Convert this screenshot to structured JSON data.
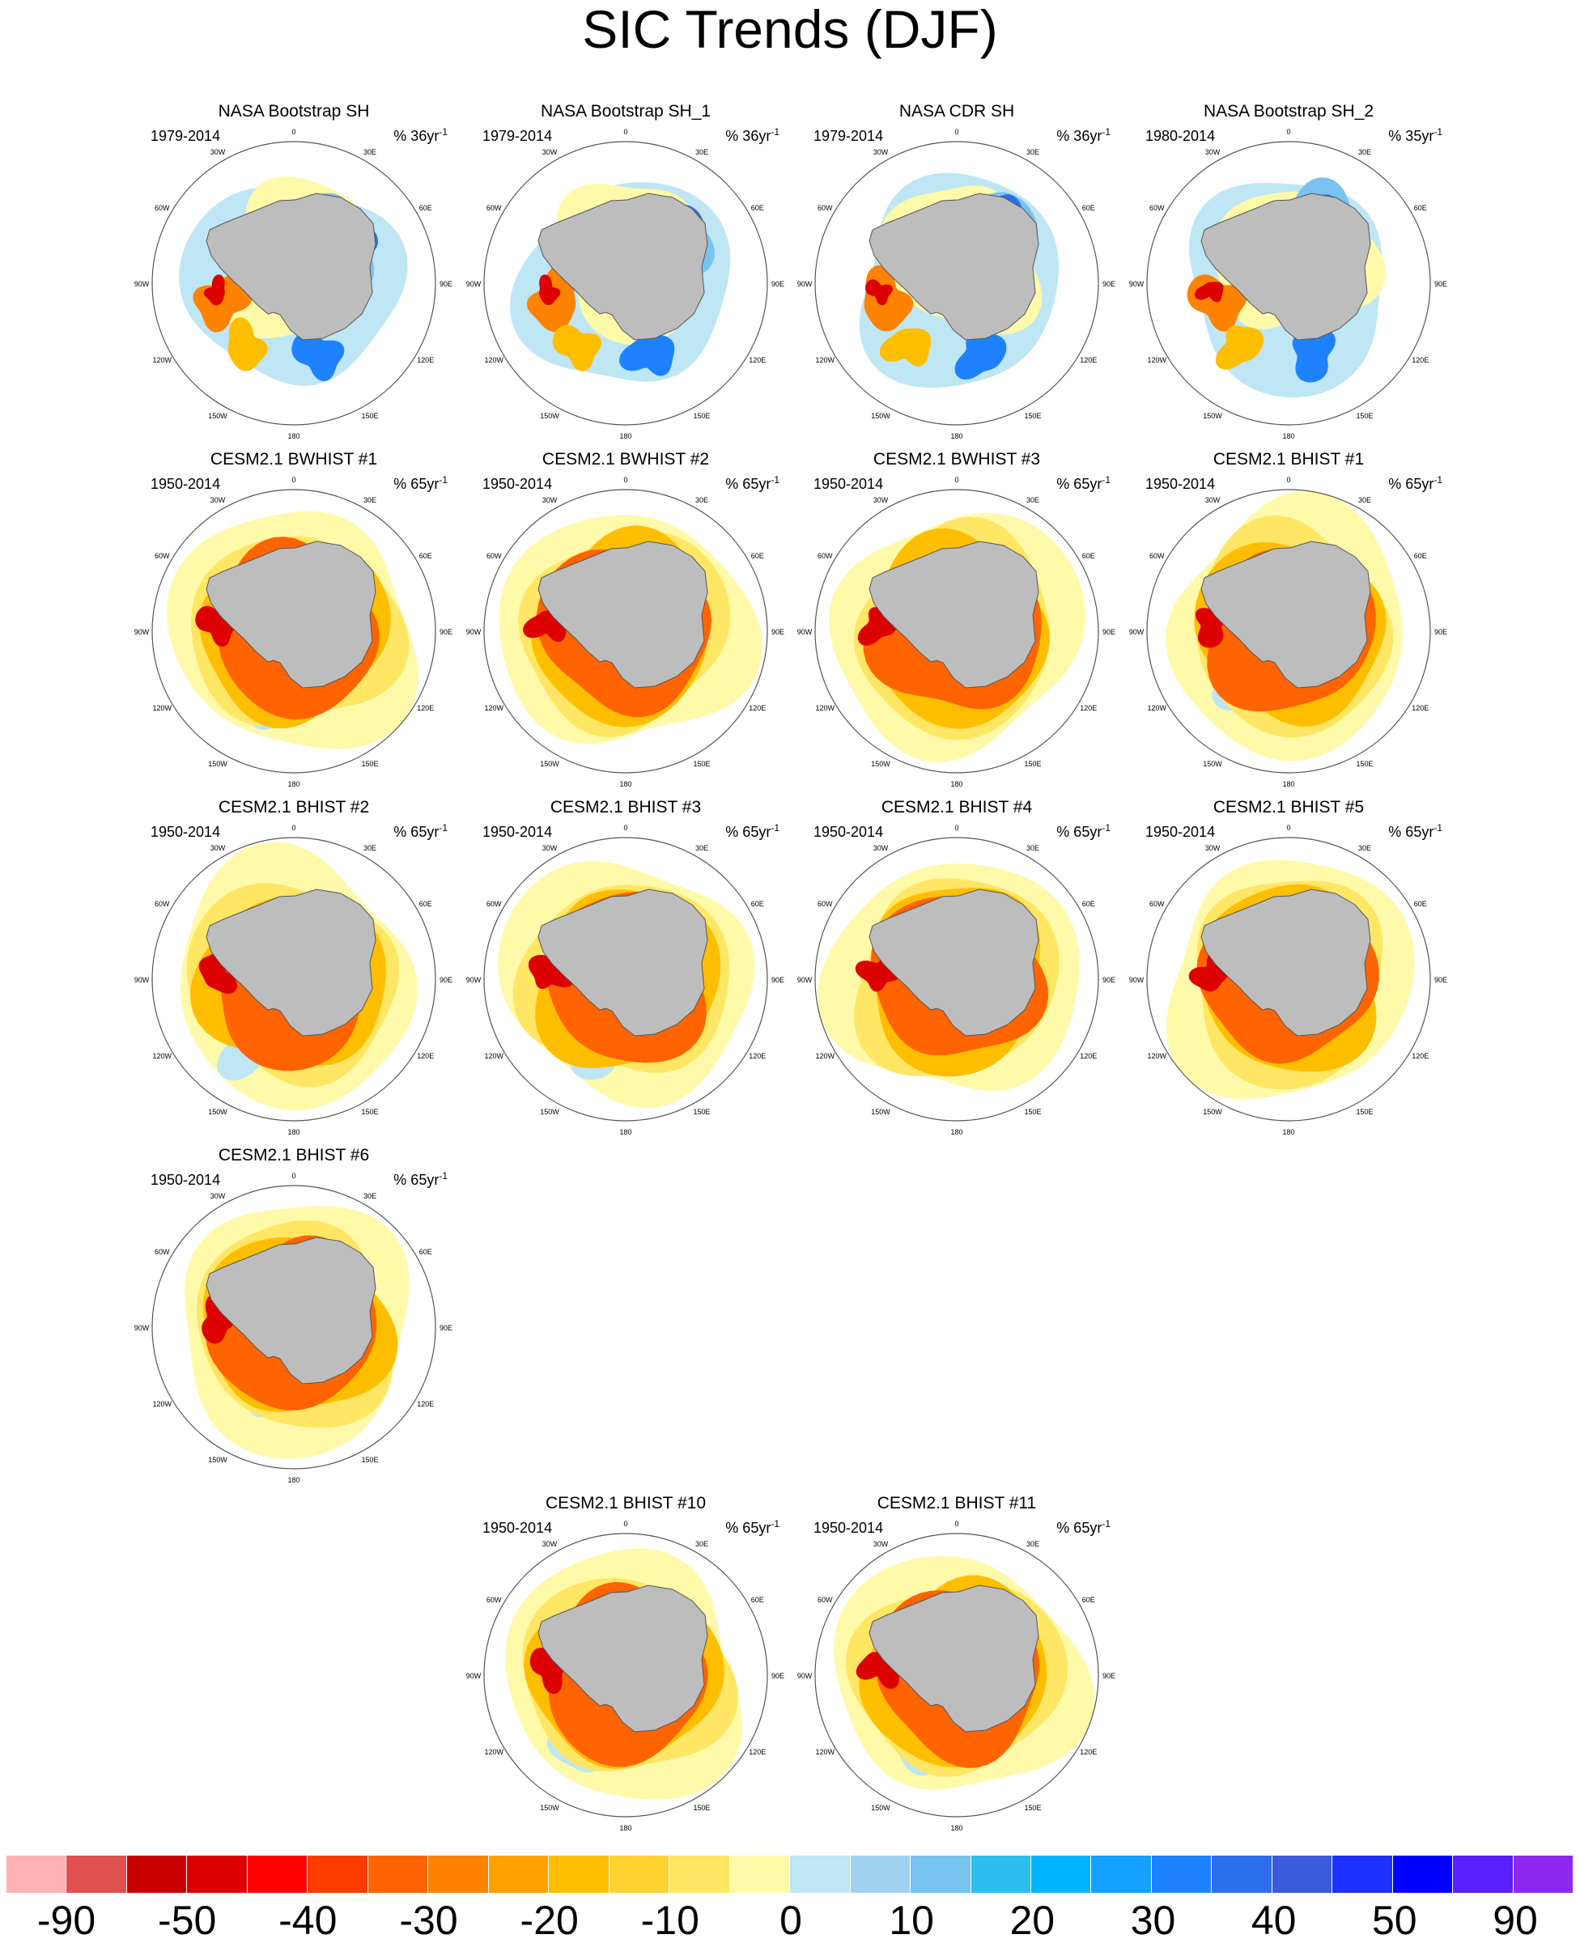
{
  "title": "SIC Trends (DJF)",
  "longitude_labels": [
    "0",
    "30E",
    "60E",
    "90E",
    "120E",
    "150E",
    "180",
    "150W",
    "120W",
    "90W",
    "60W",
    "30W"
  ],
  "panels": [
    {
      "title": "NASA Bootstrap SH",
      "period": "1979-2014",
      "units": "% 36yr",
      "units_exp": "-1",
      "kind": "obs"
    },
    {
      "title": "NASA Bootstrap SH_1",
      "period": "1979-2014",
      "units": "% 36yr",
      "units_exp": "-1",
      "kind": "obs"
    },
    {
      "title": "NASA CDR SH",
      "period": "1979-2014",
      "units": "% 36yr",
      "units_exp": "-1",
      "kind": "obs"
    },
    {
      "title": "NASA Bootstrap SH_2",
      "period": "1980-2014",
      "units": "% 35yr",
      "units_exp": "-1",
      "kind": "obs"
    },
    {
      "title": "CESM2.1 BWHIST #1",
      "period": "1950-2014",
      "units": "% 65yr",
      "units_exp": "-1",
      "kind": "model"
    },
    {
      "title": "CESM2.1 BWHIST #2",
      "period": "1950-2014",
      "units": "% 65yr",
      "units_exp": "-1",
      "kind": "model"
    },
    {
      "title": "CESM2.1 BWHIST #3",
      "period": "1950-2014",
      "units": "% 65yr",
      "units_exp": "-1",
      "kind": "model"
    },
    {
      "title": "CESM2.1 BHIST #1",
      "period": "1950-2014",
      "units": "% 65yr",
      "units_exp": "-1",
      "kind": "model"
    },
    {
      "title": "CESM2.1 BHIST #2",
      "period": "1950-2014",
      "units": "% 65yr",
      "units_exp": "-1",
      "kind": "model"
    },
    {
      "title": "CESM2.1 BHIST #3",
      "period": "1950-2014",
      "units": "% 65yr",
      "units_exp": "-1",
      "kind": "model"
    },
    {
      "title": "CESM2.1 BHIST #4",
      "period": "1950-2014",
      "units": "% 65yr",
      "units_exp": "-1",
      "kind": "model"
    },
    {
      "title": "CESM2.1 BHIST #5",
      "period": "1950-2014",
      "units": "% 65yr",
      "units_exp": "-1",
      "kind": "model"
    },
    {
      "title": "CESM2.1 BHIST #6",
      "period": "1950-2014",
      "units": "% 65yr",
      "units_exp": "-1",
      "kind": "model"
    },
    {
      "title": "CESM2.1 BHIST #10",
      "period": "1950-2014",
      "units": "% 65yr",
      "units_exp": "-1",
      "kind": "model"
    },
    {
      "title": "CESM2.1 BHIST #11",
      "period": "1950-2014",
      "units": "% 65yr",
      "units_exp": "-1",
      "kind": "model"
    }
  ],
  "colorbar": {
    "colors": [
      "#FFB3B3",
      "#E05050",
      "#C80000",
      "#DC0000",
      "#FF0000",
      "#FF3C00",
      "#FF6400",
      "#FF8200",
      "#FFA000",
      "#FFBE00",
      "#FFD232",
      "#FFE664",
      "#FFFAAA",
      "#BEE6F5",
      "#A0D2F0",
      "#78C3F0",
      "#2DBEF0",
      "#00B4FF",
      "#14A0FF",
      "#1E82FF",
      "#2D6EEB",
      "#3C5ADC",
      "#1E32FF",
      "#0000FF",
      "#5A1EFF",
      "#8C28F0"
    ],
    "labels": [
      "-90",
      "-50",
      "-40",
      "-30",
      "-20",
      "-10",
      "0",
      "10",
      "20",
      "30",
      "40",
      "50",
      "90"
    ]
  }
}
